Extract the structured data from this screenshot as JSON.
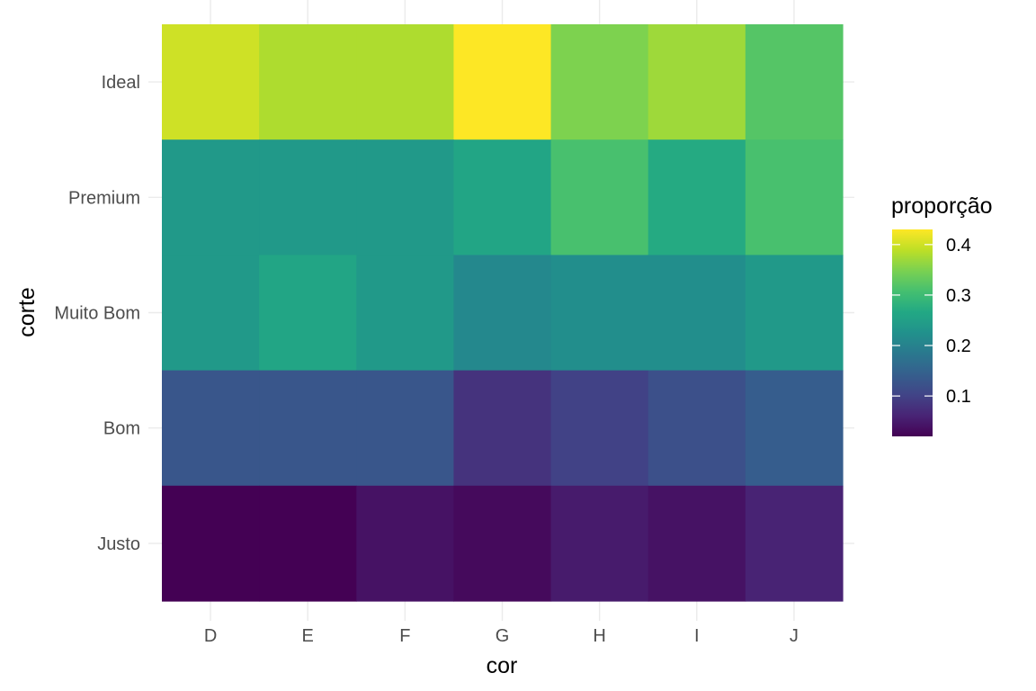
{
  "chart_data": {
    "type": "heatmap",
    "xlabel": "cor",
    "ylabel": "corte",
    "x_categories": [
      "D",
      "E",
      "F",
      "G",
      "H",
      "I",
      "J"
    ],
    "y_categories": [
      "Ideal",
      "Premium",
      "Muito Bom",
      "Bom",
      "Justo"
    ],
    "values": [
      [
        0.4,
        0.38,
        0.38,
        0.43,
        0.35,
        0.37,
        0.32
      ],
      [
        0.24,
        0.24,
        0.24,
        0.26,
        0.31,
        0.27,
        0.31
      ],
      [
        0.24,
        0.26,
        0.24,
        0.21,
        0.22,
        0.22,
        0.24
      ],
      [
        0.13,
        0.13,
        0.13,
        0.08,
        0.1,
        0.12,
        0.14
      ],
      [
        0.02,
        0.02,
        0.04,
        0.03,
        0.05,
        0.04,
        0.06
      ]
    ],
    "legend": {
      "title": "proporção",
      "min": 0.02,
      "max": 0.43,
      "ticks": [
        0.1,
        0.2,
        0.3,
        0.4
      ],
      "tick_labels": [
        "0.1",
        "0.2",
        "0.3",
        "0.4"
      ],
      "position": "right"
    },
    "colormap": "viridis",
    "grid": true
  }
}
